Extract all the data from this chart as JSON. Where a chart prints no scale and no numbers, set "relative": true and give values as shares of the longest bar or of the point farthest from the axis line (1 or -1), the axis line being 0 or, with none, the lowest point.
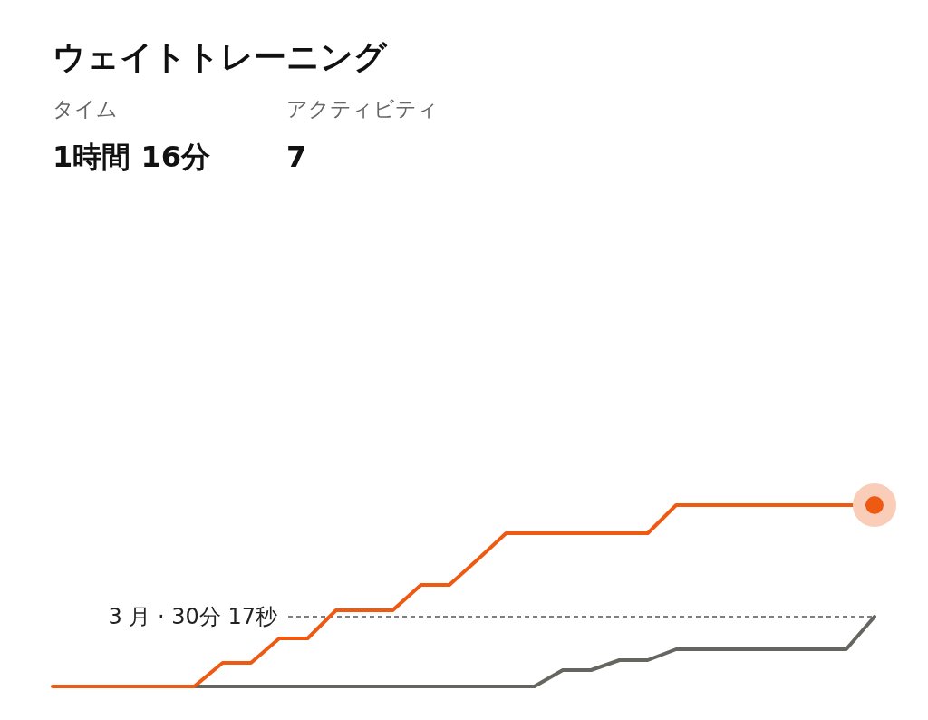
{
  "chart_data": {
    "type": "line",
    "title": "ウェイトトレーニング",
    "relative": true,
    "categories": [
      null,
      null,
      null,
      null,
      null,
      null,
      null,
      null,
      null,
      null,
      null,
      null,
      null,
      null,
      null,
      null,
      null,
      null,
      null,
      null,
      null,
      null,
      null,
      null,
      null,
      null,
      null,
      null,
      null,
      null
    ],
    "annotations": [
      "タイム",
      "1時間 16分",
      "アクティビティ",
      "7"
    ],
    "series": [
      {
        "color": "#666661",
        "values": [
          null,
          null,
          null,
          null,
          null,
          0,
          0,
          0,
          0,
          0,
          0,
          0,
          0,
          0,
          0,
          0,
          0,
          0,
          0.09,
          0.09,
          0.145,
          0.145,
          0.205,
          0.205,
          0.205,
          0.205,
          0.205,
          0.205,
          0.205,
          0.385
        ]
      },
      {
        "color": "#ee5a12",
        "values": [
          0,
          0,
          0,
          0,
          0,
          0,
          0.13,
          0.13,
          0.265,
          0.265,
          0.42,
          0.42,
          0.42,
          0.56,
          0.56,
          0.7,
          0.845,
          0.845,
          0.845,
          0.845,
          0.845,
          0.845,
          1,
          1,
          1,
          1,
          1,
          1,
          1,
          1
        ]
      }
    ],
    "ref_lines": [
      {
        "axis": "y",
        "value": 0.385,
        "label": "3 月 · 30分 17秒",
        "color": "#555555",
        "line_style": "dashed"
      }
    ]
  }
}
